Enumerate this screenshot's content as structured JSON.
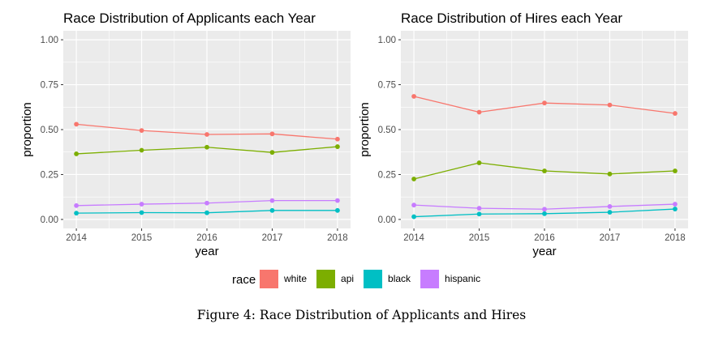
{
  "chart_data": [
    {
      "type": "line",
      "title": "Race Distribution of Applicants each Year",
      "xlabel": "year",
      "ylabel": "proportion",
      "x": [
        2014,
        2015,
        2016,
        2017,
        2018
      ],
      "x_tick_labels": [
        "2014",
        "2015",
        "2016",
        "2017",
        "2018"
      ],
      "y_tick_values": [
        0,
        0.25,
        0.5,
        0.75,
        1
      ],
      "y_tick_labels": [
        "0.00",
        "0.25",
        "0.50",
        "0.75",
        "1.00"
      ],
      "ylim": [
        0,
        1
      ],
      "grid": true,
      "series": [
        {
          "name": "white",
          "values": [
            0.53,
            0.495,
            0.473,
            0.476,
            0.447
          ]
        },
        {
          "name": "api",
          "values": [
            0.365,
            0.385,
            0.402,
            0.373,
            0.405
          ]
        },
        {
          "name": "black",
          "values": [
            0.035,
            0.038,
            0.037,
            0.05,
            0.05
          ]
        },
        {
          "name": "hispanic",
          "values": [
            0.077,
            0.085,
            0.091,
            0.105,
            0.105
          ]
        }
      ]
    },
    {
      "type": "line",
      "title": "Race Distribution of Hires each Year",
      "xlabel": "year",
      "ylabel": "proportion",
      "x": [
        2014,
        2015,
        2016,
        2017,
        2018
      ],
      "x_tick_labels": [
        "2014",
        "2015",
        "2016",
        "2017",
        "2018"
      ],
      "y_tick_values": [
        0,
        0.25,
        0.5,
        0.75,
        1
      ],
      "y_tick_labels": [
        "0.00",
        "0.25",
        "0.50",
        "0.75",
        "1.00"
      ],
      "ylim": [
        0,
        1
      ],
      "grid": true,
      "series": [
        {
          "name": "white",
          "values": [
            0.685,
            0.597,
            0.648,
            0.637,
            0.59
          ]
        },
        {
          "name": "api",
          "values": [
            0.225,
            0.315,
            0.27,
            0.253,
            0.27
          ]
        },
        {
          "name": "black",
          "values": [
            0.015,
            0.03,
            0.032,
            0.04,
            0.058
          ]
        },
        {
          "name": "hispanic",
          "values": [
            0.08,
            0.062,
            0.057,
            0.072,
            0.085
          ]
        }
      ]
    }
  ],
  "legend": {
    "title": "race",
    "placement": "bottom",
    "items": [
      {
        "label": "white",
        "color": "#F8766D"
      },
      {
        "label": "api",
        "color": "#7CAE00"
      },
      {
        "label": "black",
        "color": "#00BFC4"
      },
      {
        "label": "hispanic",
        "color": "#C77CFF"
      }
    ]
  },
  "colors": {
    "white": "#F8766D",
    "api": "#7CAE00",
    "black": "#00BFC4",
    "hispanic": "#C77CFF",
    "panel_background": "#EBEBEB",
    "grid": "#FFFFFF",
    "tick_text": "#4D4D4D"
  },
  "caption": "Figure 4: Race Distribution of Applicants and Hires"
}
